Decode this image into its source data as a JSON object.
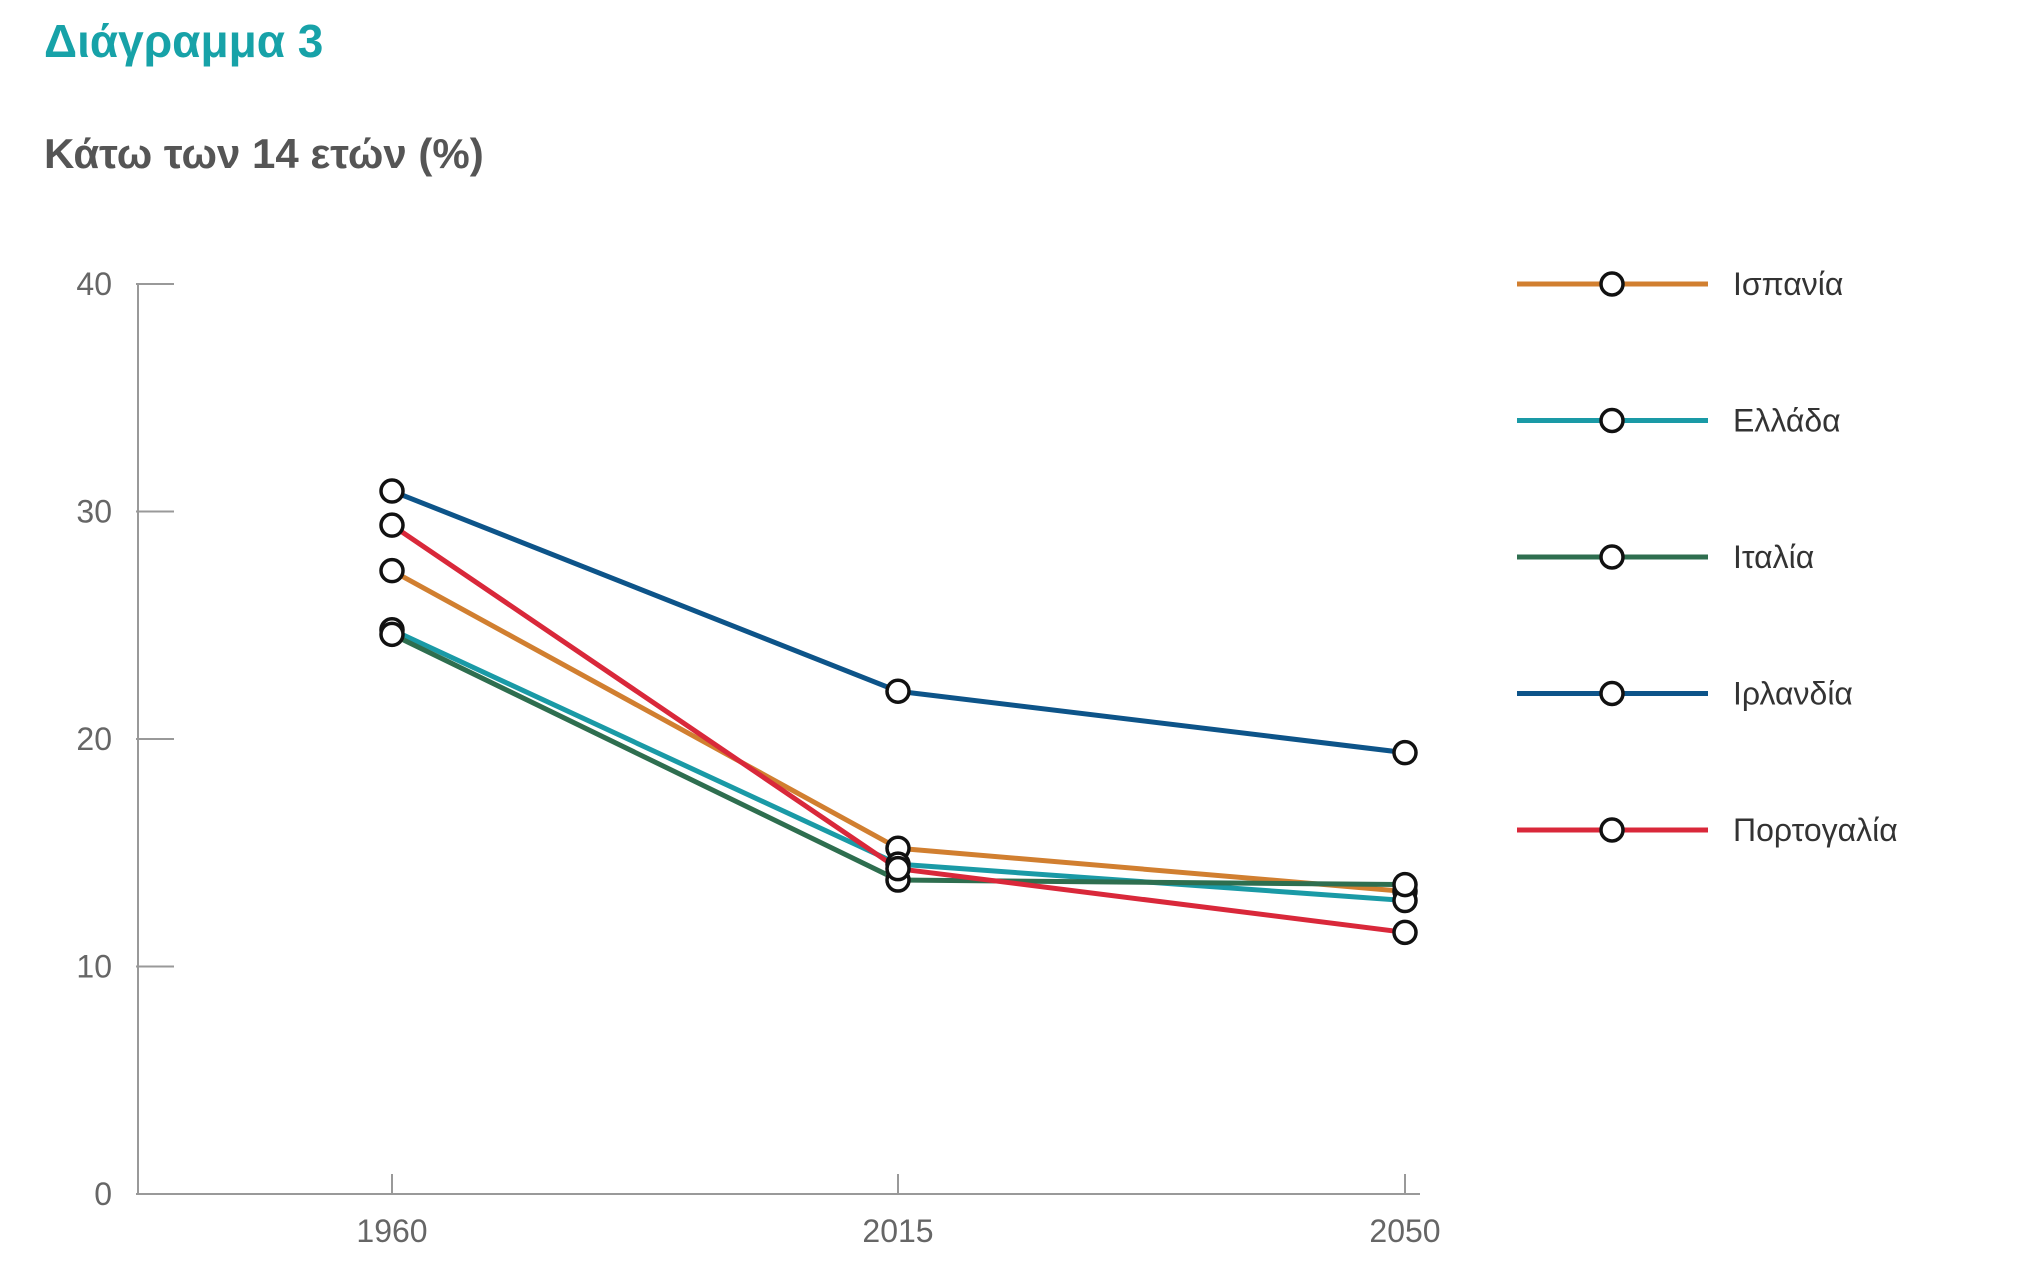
{
  "header": {
    "title": "Διάγραμμα 3",
    "subtitle": "Κάτω των 14 ετών (%)"
  },
  "chart_data": {
    "type": "line",
    "title": "Κάτω των 14 ετών (%)",
    "x": [
      "1960",
      "2015",
      "2050"
    ],
    "ylim": [
      0,
      40
    ],
    "yticks": [
      0,
      10,
      20,
      30,
      40
    ],
    "grid": false,
    "legend_position": "right",
    "series": [
      {
        "name": "Ισπανία",
        "color": "#d17f30",
        "values": [
          27.4,
          15.2,
          13.3
        ]
      },
      {
        "name": "Ελλάδα",
        "color": "#1a9aa6",
        "values": [
          24.8,
          14.5,
          12.9
        ]
      },
      {
        "name": "Ιταλία",
        "color": "#2e6e4f",
        "values": [
          24.6,
          13.8,
          13.6
        ]
      },
      {
        "name": "Ιρλανδία",
        "color": "#0d5489",
        "values": [
          30.9,
          22.1,
          19.4
        ]
      },
      {
        "name": "Πορτογαλία",
        "color": "#d9283a",
        "values": [
          29.4,
          14.3,
          11.5
        ]
      }
    ]
  }
}
